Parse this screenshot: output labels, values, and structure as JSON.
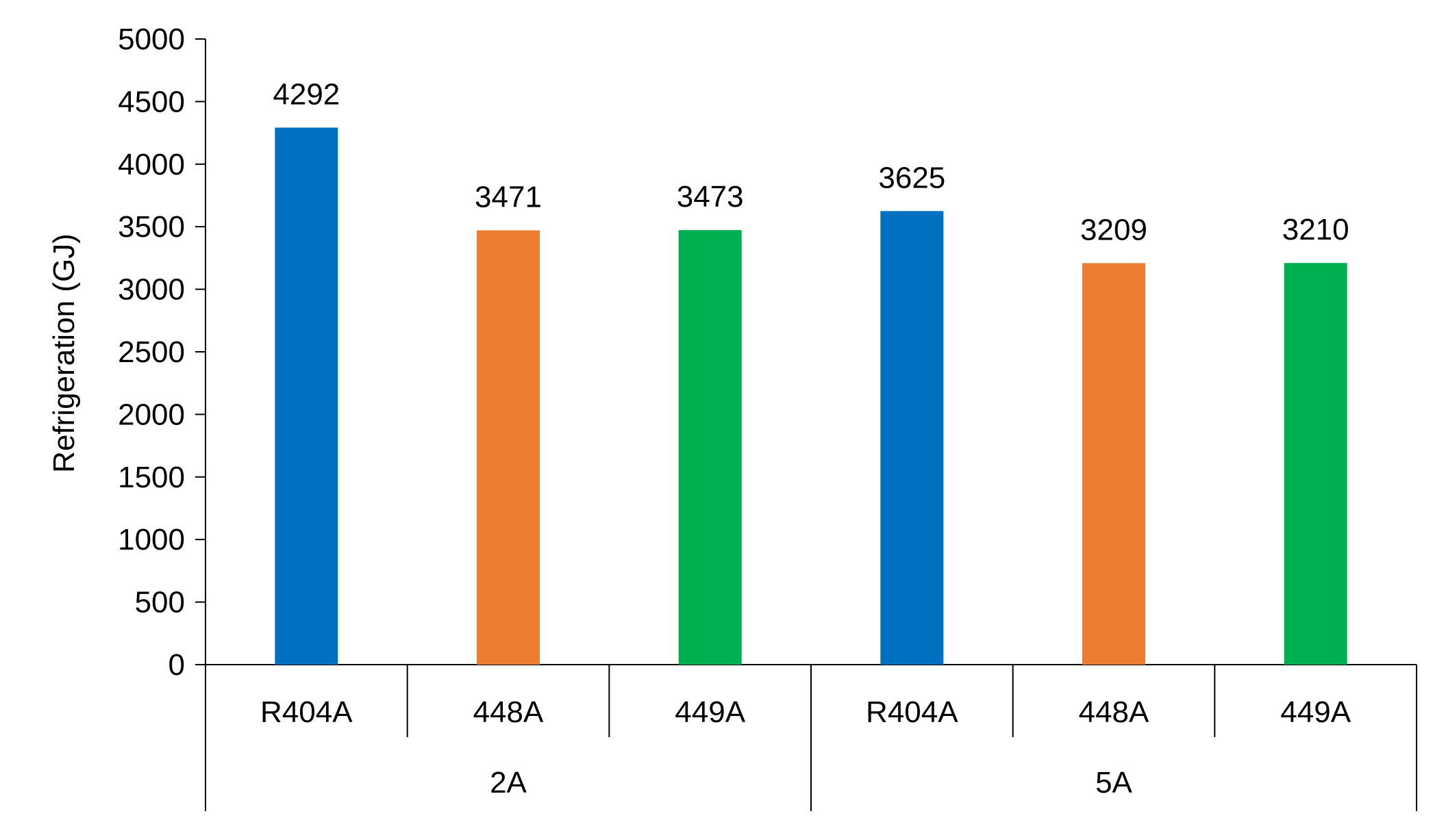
{
  "chart_data": {
    "type": "bar",
    "ylabel": "Refrigeration (GJ)",
    "xlabel": "",
    "ylim": [
      0,
      5000
    ],
    "yticks": [
      "0",
      "500",
      "1000",
      "1500",
      "2000",
      "2500",
      "3000",
      "3500",
      "4000",
      "4500",
      "5000"
    ],
    "groups": [
      {
        "label": "2A",
        "categories": [
          "R404A",
          "448A",
          "449A"
        ]
      },
      {
        "label": "5A",
        "categories": [
          "R404A",
          "448A",
          "449A"
        ]
      }
    ],
    "categories": [
      "R404A",
      "448A",
      "449A",
      "R404A",
      "448A",
      "449A"
    ],
    "values": [
      4292,
      3471,
      3473,
      3625,
      3209,
      3210
    ],
    "data_labels": [
      "4292",
      "3471",
      "3473",
      "3625",
      "3209",
      "3210"
    ],
    "bar_colors": [
      "#0070C0",
      "#ED7D31",
      "#00B050",
      "#0070C0",
      "#ED7D31",
      "#00B050"
    ],
    "grid": false,
    "legend": "none"
  }
}
